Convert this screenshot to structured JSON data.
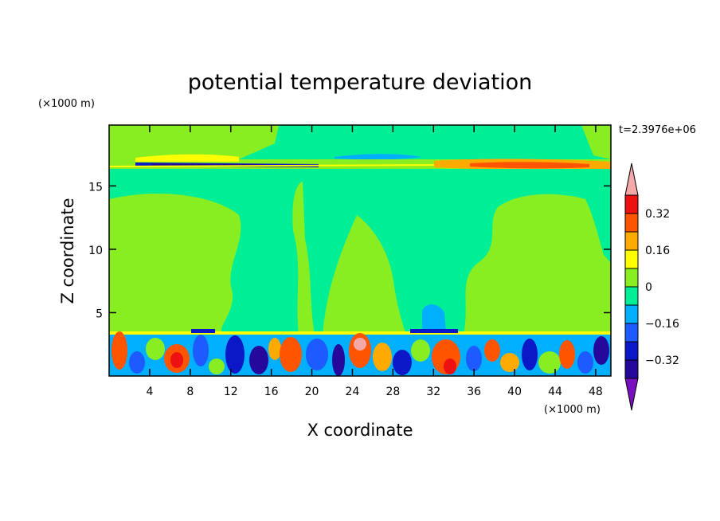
{
  "chart_data": {
    "type": "heatmap",
    "title": "potential temperature deviation",
    "xlabel": "X coordinate",
    "ylabel": "Z coordinate",
    "x_units": "(×1000 m)",
    "y_units": "(×1000 m)",
    "time_label": "t=2.3976e+06",
    "xlim": [
      0,
      49.5
    ],
    "ylim": [
      0,
      19.8
    ],
    "xticks": [
      "4",
      "8",
      "12",
      "16",
      "20",
      "24",
      "28",
      "32",
      "36",
      "40",
      "44",
      "48"
    ],
    "yticks": [
      "5",
      "10",
      "15"
    ],
    "colorbar": {
      "tick_labels": [
        "0.32",
        "0.16",
        "0",
        "−0.16",
        "−0.32"
      ],
      "levels": [
        {
          "value": "-0.44",
          "color": "#7a0fbf"
        },
        {
          "value": "-0.36",
          "color": "#25099c"
        },
        {
          "value": "-0.28",
          "color": "#0a18c8"
        },
        {
          "value": "-0.20",
          "color": "#1e5bff"
        },
        {
          "value": "-0.12",
          "color": "#00b0ff"
        },
        {
          "value": "-0.04",
          "color": "#00ee96"
        },
        {
          "value": "0.04",
          "color": "#88ee22"
        },
        {
          "value": "0.12",
          "color": "#ffff00"
        },
        {
          "value": "0.20",
          "color": "#ffaa00"
        },
        {
          "value": "0.28",
          "color": "#ff5500"
        },
        {
          "value": "0.36",
          "color": "#ee1111"
        },
        {
          "value": "0.44",
          "color": "#f4a8a8"
        }
      ]
    }
  }
}
